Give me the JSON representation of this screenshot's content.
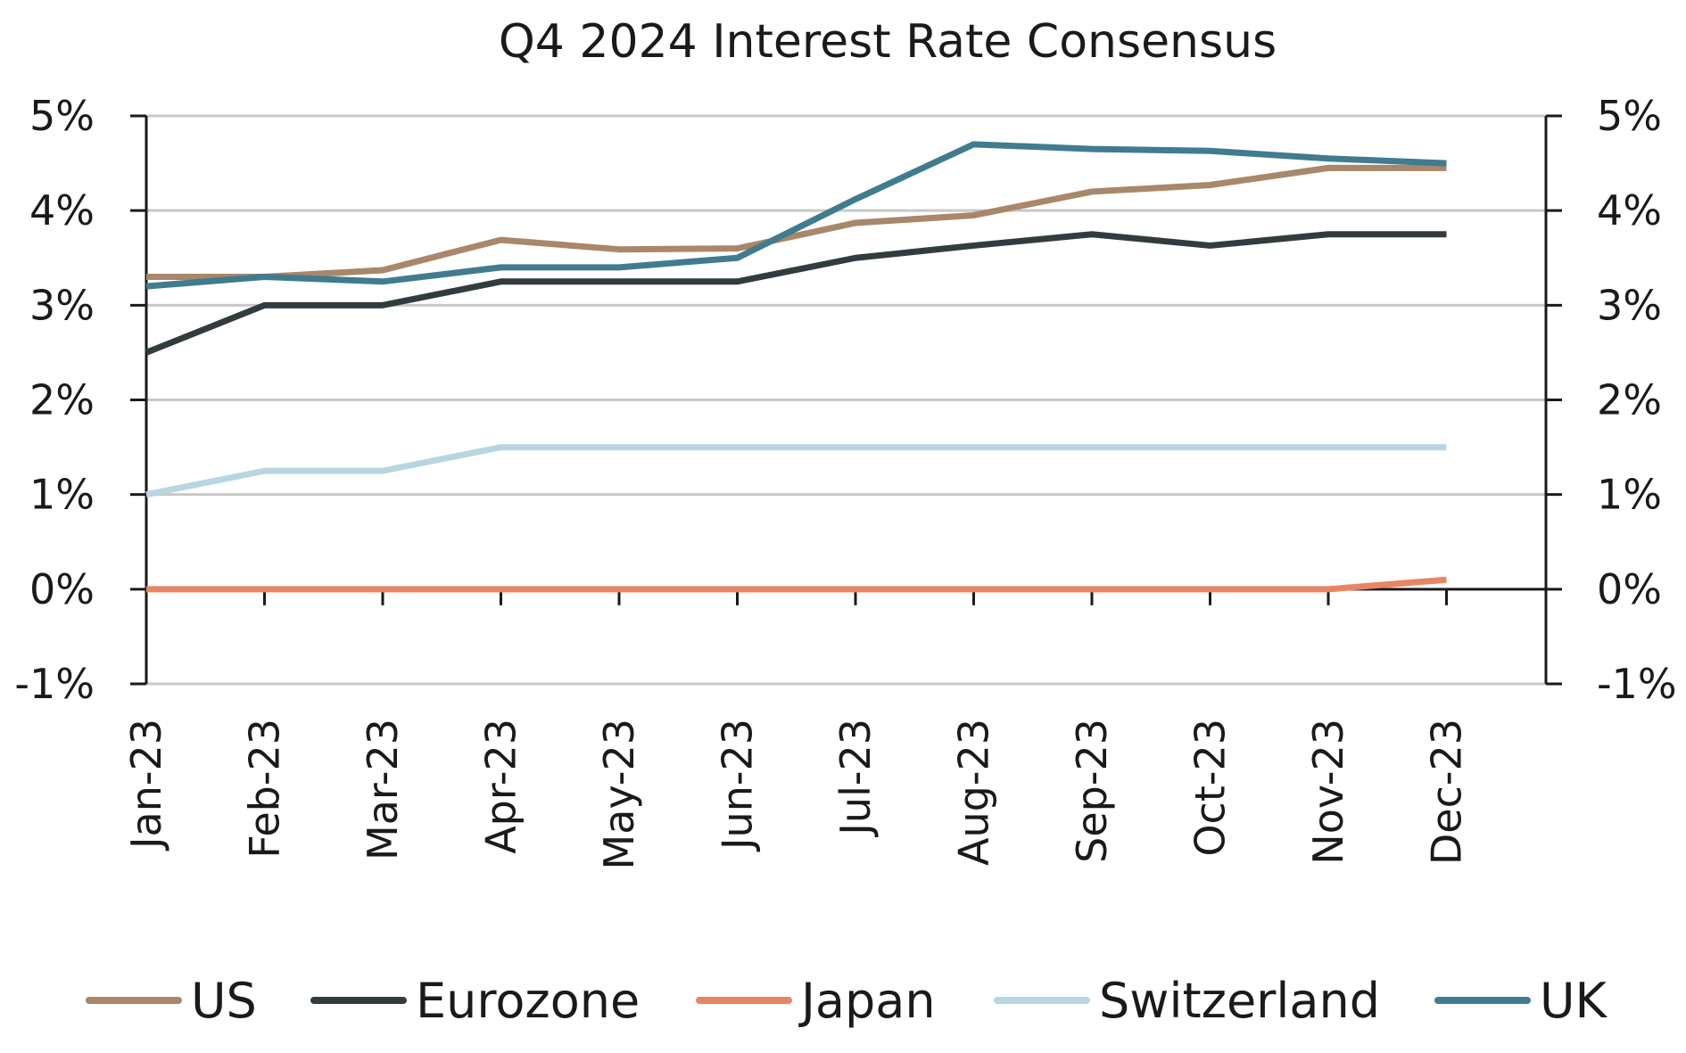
{
  "chart_data": {
    "type": "line",
    "title": "Q4 2024 Interest Rate Consensus",
    "xlabel": "",
    "ylabel": "",
    "categories": [
      "Jan-23",
      "Feb-23",
      "Mar-23",
      "Apr-23",
      "May-23",
      "Jun-23",
      "Jul-23",
      "Aug-23",
      "Sep-23",
      "Oct-23",
      "Nov-23",
      "Dec-23"
    ],
    "ylim": [
      -1,
      5
    ],
    "yticks": [
      "-1%",
      "0%",
      "1%",
      "2%",
      "3%",
      "4%",
      "5%"
    ],
    "y_axes": "left-and-right",
    "grid": "horizontal",
    "legend_position": "bottom",
    "series": [
      {
        "name": "US",
        "color": "#a8876a",
        "values": [
          3.3,
          3.3,
          3.37,
          3.69,
          3.59,
          3.6,
          3.87,
          3.95,
          4.2,
          4.27,
          4.45,
          4.45
        ]
      },
      {
        "name": "Eurozone",
        "color": "#323c3e",
        "values": [
          2.5,
          3.0,
          3.0,
          3.25,
          3.25,
          3.25,
          3.5,
          3.63,
          3.75,
          3.63,
          3.75,
          3.75
        ]
      },
      {
        "name": "Japan",
        "color": "#e98565",
        "values": [
          0.0,
          0.0,
          0.0,
          0.0,
          0.0,
          0.0,
          0.0,
          0.0,
          0.0,
          0.0,
          0.0,
          0.1
        ]
      },
      {
        "name": "Switzerland",
        "color": "#b8d6e2",
        "values": [
          1.0,
          1.25,
          1.25,
          1.5,
          1.5,
          1.5,
          1.5,
          1.5,
          1.5,
          1.5,
          1.5,
          1.5
        ]
      },
      {
        "name": "UK",
        "color": "#417b8e",
        "values": [
          3.2,
          3.3,
          3.25,
          3.4,
          3.4,
          3.5,
          4.12,
          4.7,
          4.65,
          4.63,
          4.55,
          4.5
        ]
      }
    ]
  }
}
